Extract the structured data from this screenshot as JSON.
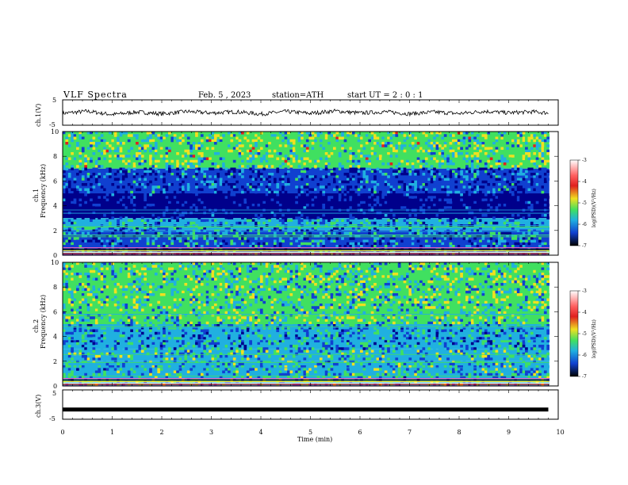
{
  "header": {
    "title": "VLF Spectra",
    "date": "Feb. 5 , 2023",
    "station": "station=ATH",
    "start_ut": "start UT = 2 : 0 : 1"
  },
  "colors": {
    "spec_dark": "#00008b",
    "spec_blue": "#1040d0",
    "spec_cyan": "#20b0e0",
    "spec_green": "#40e060",
    "spec_yellow": "#f0e020",
    "spec_red": "#e02020",
    "spec_magenta": "#e060c0"
  },
  "chart_data": [
    {
      "type": "line",
      "panel": "ch1-waveform",
      "ylabel": "ch.1(V)",
      "ylim": [
        -5,
        5
      ],
      "yticks": [
        "5",
        "-5"
      ],
      "series": [
        {
          "x": [
            0,
            0.5,
            1,
            1.5,
            2,
            2.5,
            3,
            3.5,
            4,
            4.5,
            5,
            5.5,
            6,
            6.5,
            7,
            7.5,
            8,
            8.5,
            9,
            9.5,
            9.8
          ],
          "values": [
            -0.3,
            0.5,
            -0.8,
            0.2,
            -0.5,
            0.4,
            -0.2,
            0.3,
            -0.6,
            0.4,
            -0.3,
            0.6,
            -0.2,
            0.3,
            -0.5,
            0.2,
            -0.4,
            0.5,
            -0.1,
            0.3,
            -0.2
          ]
        }
      ]
    },
    {
      "type": "heatmap",
      "panel": "ch1-spectrogram",
      "ylabel": "Frequency (kHz)",
      "channel_label": "ch.1",
      "ylim": [
        0,
        10
      ],
      "yticks": [
        "0",
        "2",
        "4",
        "6",
        "8",
        "10"
      ],
      "colorbar": {
        "label": "log(PSD)(V²/Hz)",
        "ticks": [
          "-3",
          "-4",
          "-5",
          "-6",
          "-7"
        ],
        "range": [
          -7,
          -3
        ]
      },
      "bands_khz": [
        {
          "from": 7.0,
          "to": 10.0,
          "level": -5.2
        },
        {
          "from": 5.0,
          "to": 7.0,
          "level": -6.2
        },
        {
          "from": 3.0,
          "to": 5.0,
          "level": -6.8
        },
        {
          "from": 2.0,
          "to": 3.0,
          "level": -5.8
        },
        {
          "from": 0.0,
          "to": 2.0,
          "level": -6.0
        }
      ]
    },
    {
      "type": "heatmap",
      "panel": "ch2-spectrogram",
      "ylabel": "Frequency (kHz)",
      "channel_label": "ch.2",
      "ylim": [
        0,
        10
      ],
      "yticks": [
        "0",
        "2",
        "4",
        "6",
        "8",
        "10"
      ],
      "colorbar": {
        "label": "log(PSD)(V²/Hz)",
        "ticks": [
          "-3",
          "-4",
          "-5",
          "-6",
          "-7"
        ],
        "range": [
          -7,
          -3
        ]
      },
      "bands_khz": [
        {
          "from": 5.0,
          "to": 10.0,
          "level": -5.3
        },
        {
          "from": 3.0,
          "to": 5.0,
          "level": -5.8
        },
        {
          "from": 2.0,
          "to": 3.0,
          "level": -5.5
        },
        {
          "from": 0.0,
          "to": 2.0,
          "level": -5.6
        }
      ]
    },
    {
      "type": "line",
      "panel": "ch3-waveform",
      "ylabel": "ch.3(V)",
      "ylim": [
        -5,
        5
      ],
      "yticks": [
        "5",
        "-5"
      ],
      "series": [
        {
          "x": [
            0,
            9.8
          ],
          "values": [
            -1.7,
            -1.7
          ]
        }
      ]
    }
  ],
  "xaxis": {
    "label": "Time (min)",
    "range": [
      0,
      10
    ],
    "ticks": [
      "0",
      "1",
      "2",
      "3",
      "4",
      "5",
      "6",
      "7",
      "8",
      "9",
      "10"
    ]
  }
}
